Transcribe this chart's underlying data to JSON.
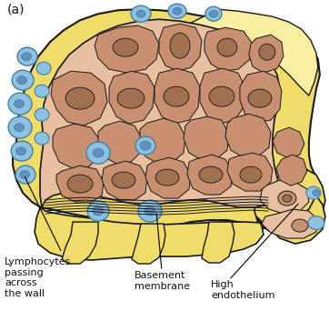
{
  "title_label": "(a)",
  "bg_color": "#ffffff",
  "yellow_color": "#f0dc6a",
  "yellow_light": "#f8f0a0",
  "salmon_color": "#e8c0a0",
  "brown_color": "#c89070",
  "brown_dark": "#a07050",
  "blue_cell_color": "#90c0e0",
  "blue_cell_edge": "#4080a0",
  "blue_nucleus": "#6090c0",
  "outline_color": "#181818",
  "label_lymphocytes": "Lymphocytes\npassing\nacross\nthe wall",
  "label_basement": "Basement\nmembrane",
  "label_high": "High\nendothelium",
  "font_size": 8.0,
  "label_color": "#111111"
}
